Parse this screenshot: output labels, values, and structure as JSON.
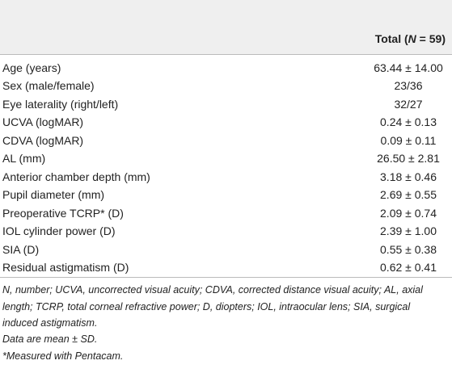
{
  "header": {
    "total_prefix": "Total (",
    "total_n": "N",
    "total_suffix": " = 59)"
  },
  "table": {
    "rows": [
      [
        "Age (years)",
        "63.44 ± 14.00"
      ],
      [
        "Sex (male/female)",
        "23/36"
      ],
      [
        "Eye laterality (right/left)",
        "32/27"
      ],
      [
        "UCVA (logMAR)",
        "0.24 ± 0.13"
      ],
      [
        "CDVA (logMAR)",
        "0.09 ± 0.11"
      ],
      [
        "AL (mm)",
        "26.50 ± 2.81"
      ],
      [
        "Anterior chamber depth (mm)",
        "3.18 ± 0.46"
      ],
      [
        "Pupil diameter (mm)",
        "2.69 ± 0.55"
      ],
      [
        "Preoperative TCRP* (D)",
        "2.09 ± 0.74"
      ],
      [
        "IOL cylinder power (D)",
        "2.39 ± 1.00"
      ],
      [
        "SIA (D)",
        "0.55 ± 0.38"
      ],
      [
        "Residual astigmatism (D)",
        "0.62 ± 0.41"
      ]
    ]
  },
  "footnotes": [
    "N, number; UCVA, uncorrected visual acuity; CDVA, corrected distance visual acuity; AL, axial length; TCRP, total corneal refractive power; D, diopters; IOL, intraocular lens; SIA, surgical induced astigmatism.",
    "Data are mean ± SD.",
    "*Measured with Pentacam."
  ]
}
